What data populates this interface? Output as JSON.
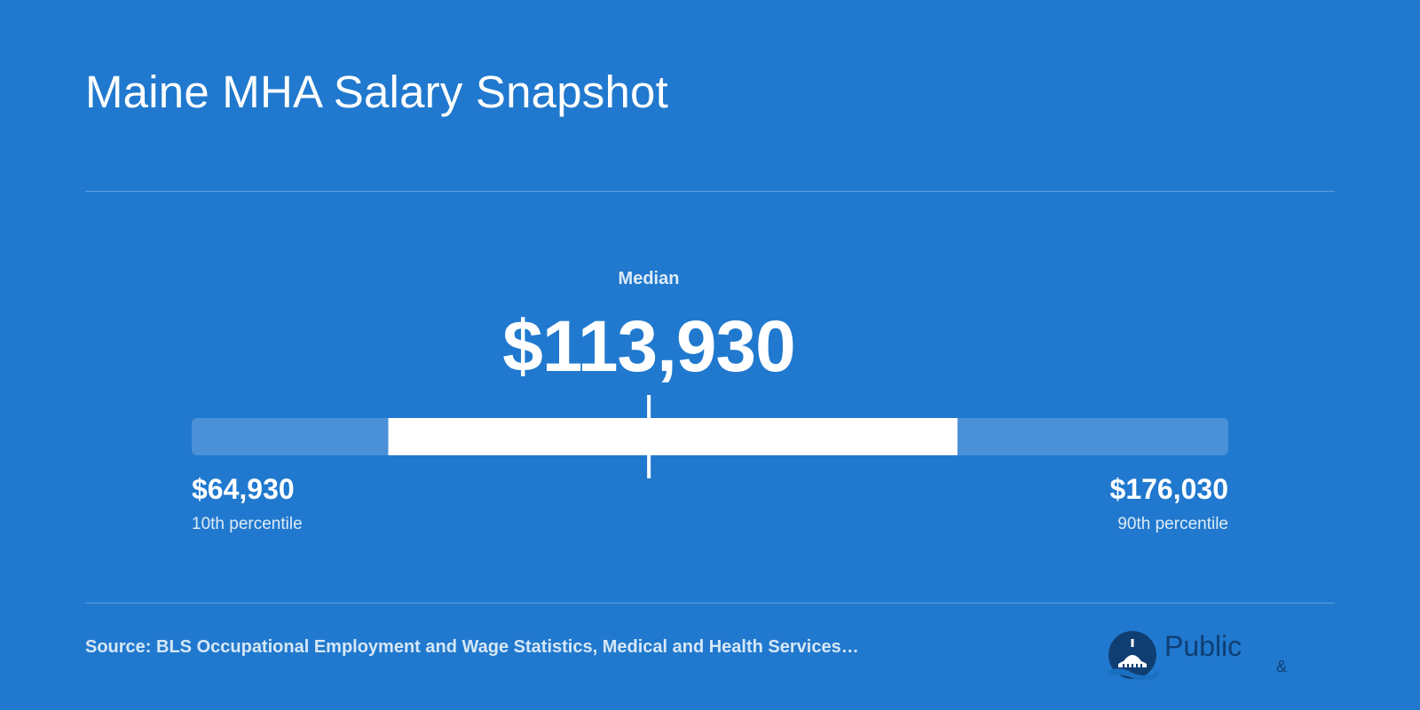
{
  "title": "Maine MHA Salary Snapshot",
  "median": {
    "label": "Median",
    "value_text": "$113,930"
  },
  "low": {
    "value_text": "$64,930",
    "caption": "10th percentile"
  },
  "high": {
    "value_text": "$176,030",
    "caption": "90th percentile"
  },
  "source": "Source: BLS Occupational Employment and Wage Statistics, Medical and Health Services…",
  "logo": {
    "word": "Public",
    "amp": "&"
  },
  "colors": {
    "background": "#2079ce",
    "track": "#4b91d8",
    "iqr": "#ffffff",
    "marker": "#ffffff"
  },
  "chart_data": {
    "type": "bar",
    "percentiles": [
      {
        "name": "10th percentile",
        "value": 64930
      },
      {
        "name": "Median",
        "value": 113930
      },
      {
        "name": "90th percentile",
        "value": 176030
      }
    ],
    "axis_range": [
      64930,
      176030
    ],
    "interquartile_range": [
      86000,
      147000
    ]
  }
}
